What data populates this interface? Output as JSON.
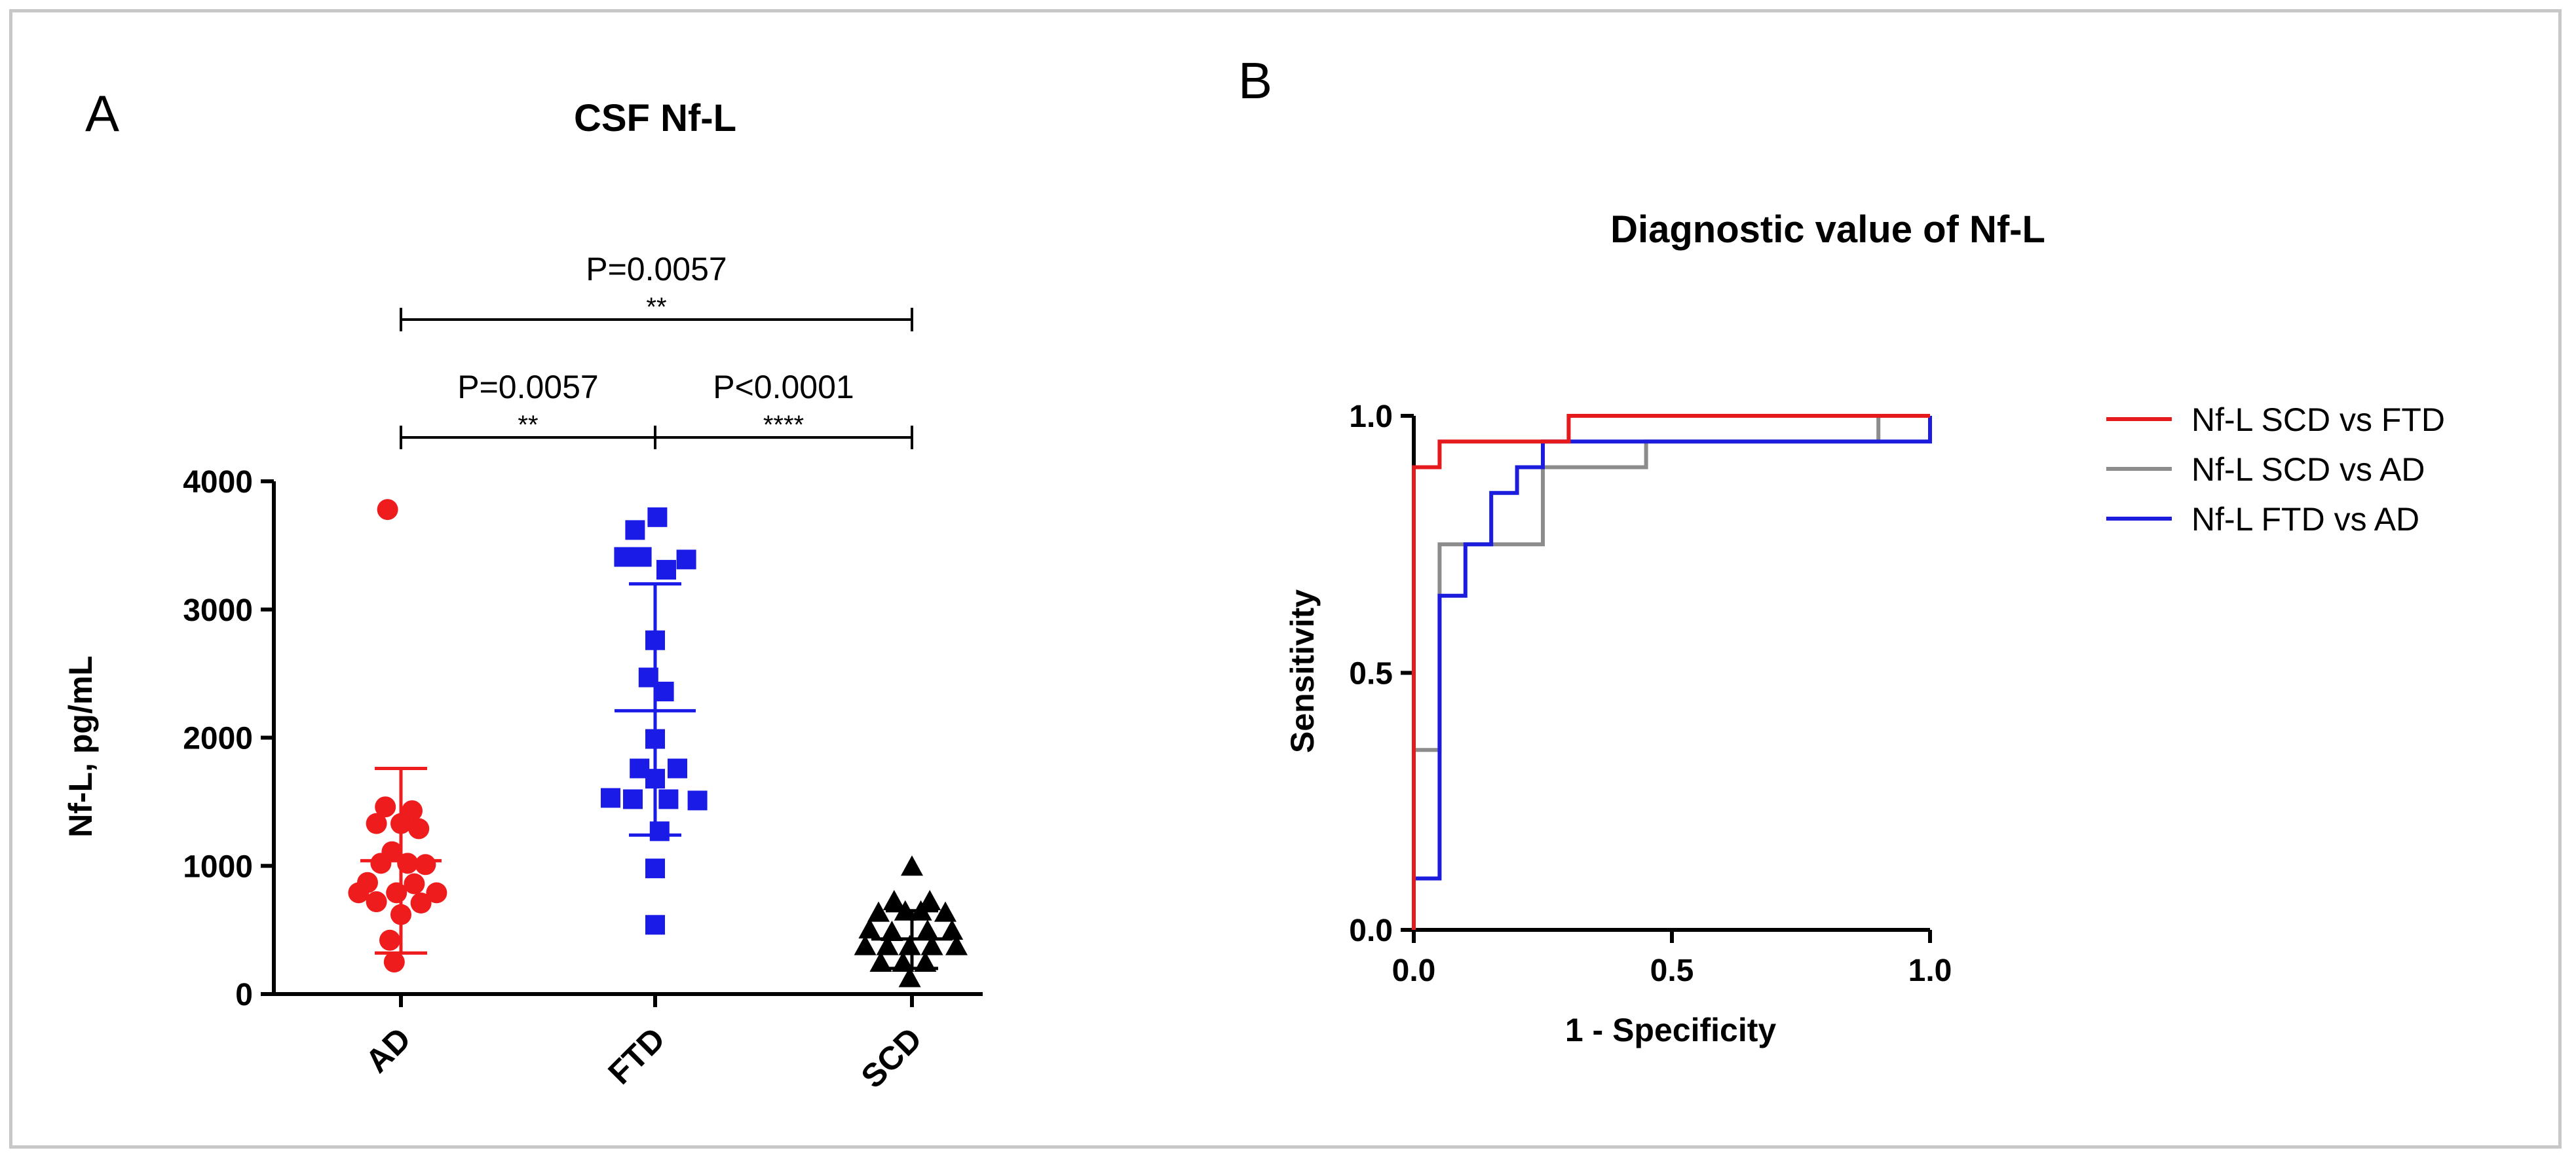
{
  "chart_data": [
    {
      "panel_label": "A",
      "type": "scatter",
      "title": "CSF Nf-L",
      "xlabel": "",
      "ylabel": "Nf-L, pg/mL",
      "ylim": [
        0,
        4000
      ],
      "yticks": [
        0,
        1000,
        2000,
        3000,
        4000
      ],
      "categories": [
        "AD",
        "FTD",
        "SCD"
      ],
      "series": [
        {
          "name": "AD",
          "color": "#ee1c1c",
          "marker": "circle",
          "mean": 1040,
          "sd_low": 320,
          "sd_high": 1760,
          "points": [
            {
              "x": -0.12,
              "y": 3780
            },
            {
              "x": -0.14,
              "y": 1460
            },
            {
              "x": 0.1,
              "y": 1430
            },
            {
              "x": -0.22,
              "y": 1330
            },
            {
              "x": 0.0,
              "y": 1330
            },
            {
              "x": 0.16,
              "y": 1290
            },
            {
              "x": -0.08,
              "y": 1110
            },
            {
              "x": -0.18,
              "y": 1020
            },
            {
              "x": 0.06,
              "y": 1020
            },
            {
              "x": 0.22,
              "y": 1010
            },
            {
              "x": -0.3,
              "y": 870
            },
            {
              "x": 0.12,
              "y": 860
            },
            {
              "x": -0.38,
              "y": 790
            },
            {
              "x": -0.04,
              "y": 790
            },
            {
              "x": 0.32,
              "y": 790
            },
            {
              "x": -0.22,
              "y": 720
            },
            {
              "x": 0.18,
              "y": 710
            },
            {
              "x": 0.0,
              "y": 620
            },
            {
              "x": -0.1,
              "y": 420
            },
            {
              "x": -0.06,
              "y": 250
            }
          ]
        },
        {
          "name": "FTD",
          "color": "#1b1be8",
          "marker": "square",
          "mean": 2210,
          "sd_low": 1240,
          "sd_high": 3200,
          "points": [
            {
              "x": 0.02,
              "y": 3720
            },
            {
              "x": -0.18,
              "y": 3620
            },
            {
              "x": -0.28,
              "y": 3410
            },
            {
              "x": -0.12,
              "y": 3410
            },
            {
              "x": 0.28,
              "y": 3390
            },
            {
              "x": 0.1,
              "y": 3310
            },
            {
              "x": 0.0,
              "y": 2760
            },
            {
              "x": -0.06,
              "y": 2470
            },
            {
              "x": 0.08,
              "y": 2360
            },
            {
              "x": 0.0,
              "y": 1990
            },
            {
              "x": -0.14,
              "y": 1760
            },
            {
              "x": 0.2,
              "y": 1760
            },
            {
              "x": 0.0,
              "y": 1680
            },
            {
              "x": -0.4,
              "y": 1530
            },
            {
              "x": -0.2,
              "y": 1520
            },
            {
              "x": 0.12,
              "y": 1520
            },
            {
              "x": 0.38,
              "y": 1510
            },
            {
              "x": 0.04,
              "y": 1270
            },
            {
              "x": 0.0,
              "y": 980
            },
            {
              "x": 0.0,
              "y": 540
            }
          ]
        },
        {
          "name": "SCD",
          "color": "#000000",
          "marker": "triangle",
          "mean": 430,
          "sd_low": 200,
          "sd_high": 650,
          "points": [
            {
              "x": 0.0,
              "y": 990
            },
            {
              "x": -0.16,
              "y": 720
            },
            {
              "x": 0.16,
              "y": 720
            },
            {
              "x": -0.3,
              "y": 630
            },
            {
              "x": -0.06,
              "y": 640
            },
            {
              "x": 0.08,
              "y": 640
            },
            {
              "x": 0.3,
              "y": 630
            },
            {
              "x": -0.38,
              "y": 500
            },
            {
              "x": -0.18,
              "y": 480
            },
            {
              "x": 0.14,
              "y": 490
            },
            {
              "x": 0.36,
              "y": 490
            },
            {
              "x": -0.42,
              "y": 370
            },
            {
              "x": -0.22,
              "y": 370
            },
            {
              "x": -0.02,
              "y": 370
            },
            {
              "x": 0.18,
              "y": 370
            },
            {
              "x": 0.4,
              "y": 370
            },
            {
              "x": -0.28,
              "y": 240
            },
            {
              "x": -0.08,
              "y": 240
            },
            {
              "x": 0.12,
              "y": 240
            },
            {
              "x": -0.02,
              "y": 120
            }
          ]
        }
      ],
      "annotations": [
        {
          "from": "AD",
          "to": "SCD",
          "p_text": "P=0.0057",
          "stars": "**",
          "level": 2
        },
        {
          "from": "AD",
          "to": "FTD",
          "p_text": "P=0.0057",
          "stars": "**",
          "level": 1
        },
        {
          "from": "FTD",
          "to": "SCD",
          "p_text": "P<0.0001",
          "stars": "****",
          "level": 1
        }
      ]
    },
    {
      "panel_label": "B",
      "type": "line",
      "title": "Diagnostic value of Nf-L",
      "xlabel": "1 - Specificity",
      "ylabel": "Sensitivity",
      "xlim": [
        0,
        1
      ],
      "ylim": [
        0,
        1
      ],
      "xticks": [
        "0.0",
        "0.5",
        "1.0"
      ],
      "yticks": [
        "0.0",
        "0.5",
        "1.0"
      ],
      "legend_position": "right",
      "series": [
        {
          "name": "Nf-L SCD vs FTD",
          "color": "#e41a1c",
          "points": [
            [
              0,
              0
            ],
            [
              0,
              0.9
            ],
            [
              0.05,
              0.9
            ],
            [
              0.05,
              0.95
            ],
            [
              0.3,
              0.95
            ],
            [
              0.3,
              1
            ],
            [
              1,
              1
            ]
          ]
        },
        {
          "name": "Nf-L SCD vs AD",
          "color": "#8c8c8c",
          "points": [
            [
              0,
              0
            ],
            [
              0,
              0.35
            ],
            [
              0.05,
              0.35
            ],
            [
              0.05,
              0.75
            ],
            [
              0.25,
              0.75
            ],
            [
              0.25,
              0.9
            ],
            [
              0.45,
              0.9
            ],
            [
              0.45,
              0.95
            ],
            [
              0.9,
              0.95
            ],
            [
              0.9,
              1
            ],
            [
              1,
              1
            ]
          ]
        },
        {
          "name": "Nf-L FTD vs AD",
          "color": "#1c1cdc",
          "points": [
            [
              0,
              0
            ],
            [
              0,
              0.1
            ],
            [
              0.05,
              0.1
            ],
            [
              0.05,
              0.65
            ],
            [
              0.1,
              0.65
            ],
            [
              0.1,
              0.75
            ],
            [
              0.15,
              0.75
            ],
            [
              0.15,
              0.85
            ],
            [
              0.2,
              0.85
            ],
            [
              0.2,
              0.9
            ],
            [
              0.25,
              0.9
            ],
            [
              0.25,
              0.95
            ],
            [
              1,
              0.95
            ],
            [
              1,
              1
            ]
          ]
        }
      ]
    }
  ]
}
